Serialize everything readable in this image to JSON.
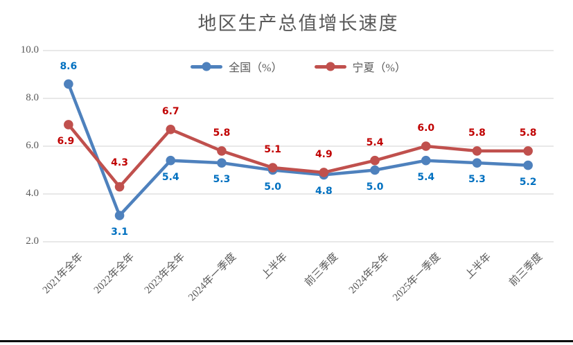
{
  "chart_data": {
    "type": "line",
    "title": "地区生产总值增长速度",
    "categories": [
      "2021年全年",
      "2022年全年",
      "2023年全年",
      "2024年一季度",
      "上半年",
      "前三季度",
      "2024年全年",
      "2025年一季度",
      "上半年",
      "前三季度"
    ],
    "series": [
      {
        "name": "全国（%）",
        "values": [
          8.6,
          3.1,
          5.4,
          5.3,
          5.0,
          4.8,
          5.0,
          5.4,
          5.3,
          5.2
        ],
        "line_color": "#4E81BD",
        "label_color": "#0070C0"
      },
      {
        "name": "宁夏（%）",
        "values": [
          6.9,
          4.3,
          6.7,
          5.8,
          5.1,
          4.9,
          5.4,
          6.0,
          5.8,
          5.8
        ],
        "line_color": "#C0504D",
        "label_color": "#C00000"
      }
    ],
    "y_ticks": [
      "10.0",
      "8.0",
      "6.0",
      "4.0",
      "2.0"
    ],
    "y_tick_values": [
      10,
      8,
      6,
      4,
      2
    ],
    "ylim": [
      2,
      10
    ],
    "xlabel": "",
    "ylabel": "",
    "grid": "horizontal",
    "gridline_color": "#D9D9D9",
    "legend_position": "top-center",
    "title_color": "#595959",
    "axis_text_color": "#595959",
    "bottom_rule_color": "#000000"
  }
}
